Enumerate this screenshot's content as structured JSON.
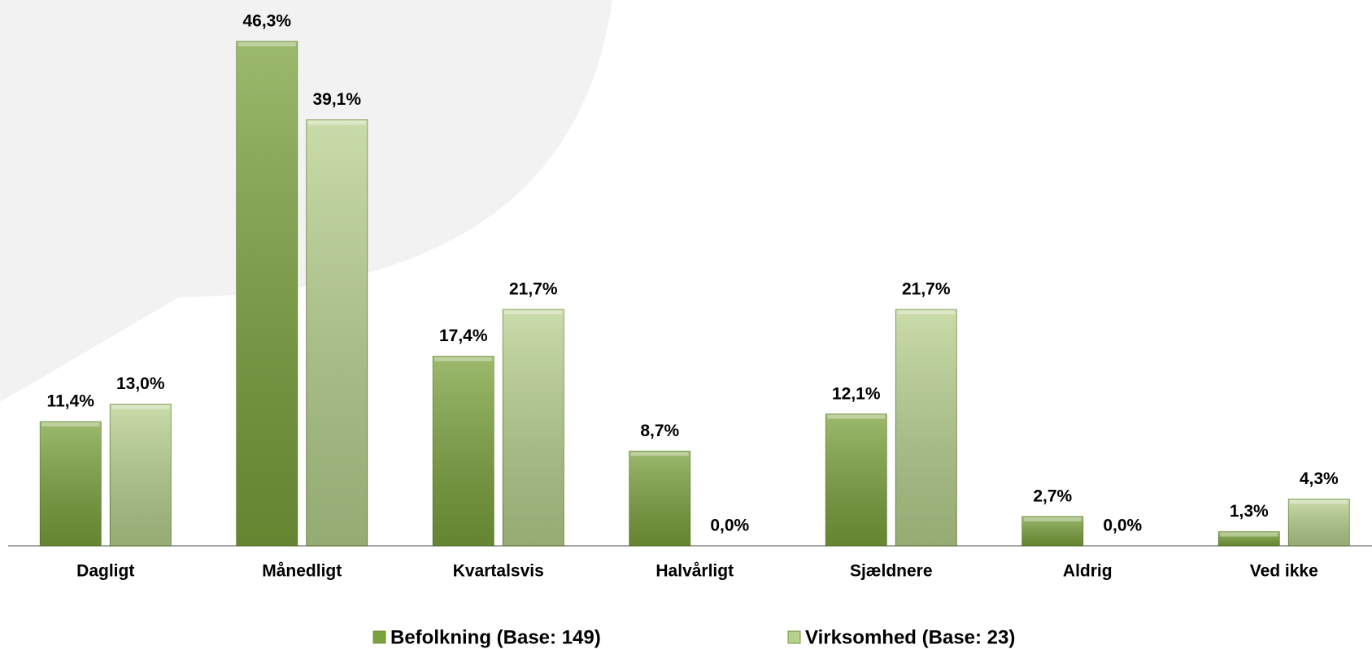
{
  "chart_data": {
    "type": "bar",
    "categories": [
      "Dagligt",
      "Månedligt",
      "Kvartalsvis",
      "Halvårligt",
      "Sjældnere",
      "Aldrig",
      "Ved ikke"
    ],
    "series": [
      {
        "name": "Befolkning (Base: 149)",
        "color": "#7ba23c",
        "values": [
          11.4,
          46.3,
          17.4,
          8.7,
          12.1,
          2.7,
          1.3
        ],
        "value_labels": [
          "11,4%",
          "46,3%",
          "17,4%",
          "8,7%",
          "12,1%",
          "2,7%",
          "1,3%"
        ]
      },
      {
        "name": "Virksomhed (Base: 23)",
        "color": "#b7d08e",
        "values": [
          13.0,
          39.1,
          21.7,
          0.0,
          21.7,
          0.0,
          4.3
        ],
        "value_labels": [
          "13,0%",
          "39,1%",
          "21,7%",
          "0,0%",
          "21,7%",
          "0,0%",
          "4,3%"
        ]
      }
    ]
  }
}
